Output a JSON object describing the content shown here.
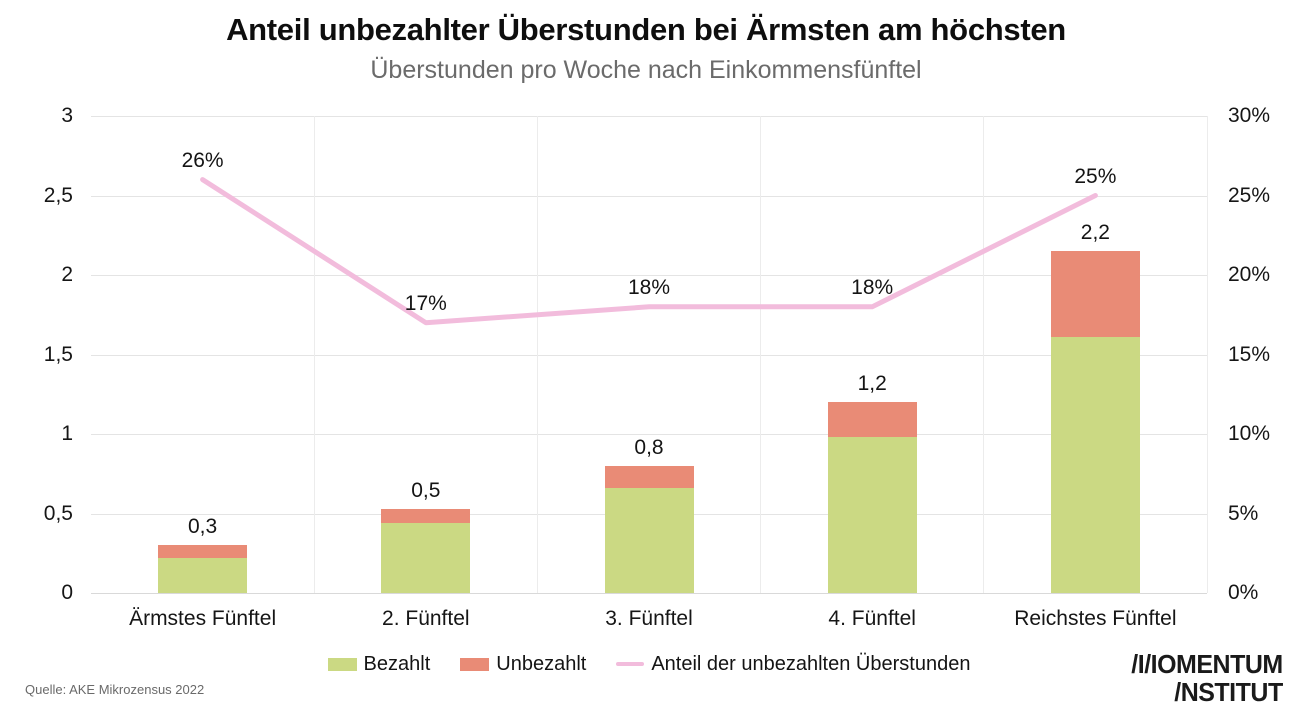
{
  "header": {
    "title": "Anteil unbezahlter Überstunden bei Ärmsten am höchsten",
    "subtitle": "Überstunden pro Woche nach Einkommensfünftel"
  },
  "colors": {
    "bezahlt": "#cbd983",
    "unbezahlt": "#e98b76",
    "line": "#f2bcdc",
    "grid": "#e4e4e4",
    "baseline": "#d9d9d9"
  },
  "chart_data": {
    "type": "bar",
    "subtype": "stacked-bars-with-line",
    "categories": [
      "Ärmstes Fünftel",
      "2. Fünftel",
      "3. Fünftel",
      "4. Fünftel",
      "Reichstes Fünftel"
    ],
    "series": [
      {
        "name": "Bezahlt",
        "type": "bar",
        "stack": "overtime",
        "color_key": "bezahlt",
        "values": [
          0.22,
          0.44,
          0.66,
          0.98,
          1.61
        ]
      },
      {
        "name": "Unbezahlt",
        "type": "bar",
        "stack": "overtime",
        "color_key": "unbezahlt",
        "values": [
          0.08,
          0.09,
          0.14,
          0.22,
          0.54
        ]
      },
      {
        "name": "Anteil der unbezahlten Überstunden",
        "type": "line",
        "axis": "right",
        "color_key": "line",
        "values": [
          26,
          17,
          18,
          18,
          25
        ]
      }
    ],
    "bar_total_labels": [
      "0,3",
      "0,5",
      "0,8",
      "1,2",
      "2,2"
    ],
    "line_point_labels": [
      "26%",
      "17%",
      "18%",
      "18%",
      "25%"
    ],
    "title": "Anteil unbezahlter Überstunden bei Ärmsten am höchsten",
    "xlabel": "",
    "ylabel": "",
    "left_axis": {
      "min": 0,
      "max": 3,
      "ticks": [
        "3",
        "2,5",
        "2",
        "1,5",
        "1",
        "0,5",
        "0"
      ]
    },
    "right_axis": {
      "min": 0,
      "max": 30,
      "ticks": [
        "30%",
        "25%",
        "20%",
        "15%",
        "10%",
        "5%",
        "0%"
      ]
    },
    "grid": true,
    "legend_position": "bottom"
  },
  "legend": {
    "items": [
      {
        "label": "Bezahlt",
        "swatch": "rect",
        "color_key": "bezahlt"
      },
      {
        "label": "Unbezahlt",
        "swatch": "rect",
        "color_key": "unbezahlt"
      },
      {
        "label": "Anteil der unbezahlten Überstunden",
        "swatch": "line",
        "color_key": "line"
      }
    ]
  },
  "footer": {
    "source": "Quelle: AKE Mikrozensus 2022",
    "logo_line1": "/I/IOMENTUM",
    "logo_line2": "/NSTITUT"
  }
}
